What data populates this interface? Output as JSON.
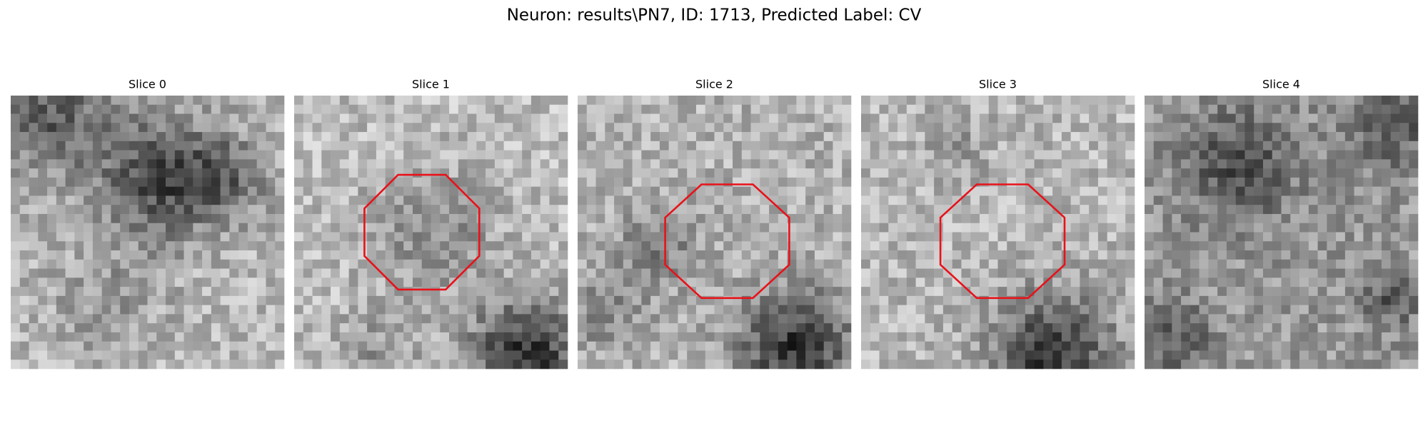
{
  "figure": {
    "title": "Neuron: results\\PN7, ID: 1713, Predicted Label: CV",
    "panels": [
      {
        "title": "Slice 0"
      },
      {
        "title": "Slice 1"
      },
      {
        "title": "Slice 2"
      },
      {
        "title": "Slice 3"
      },
      {
        "title": "Slice 4"
      }
    ]
  }
}
